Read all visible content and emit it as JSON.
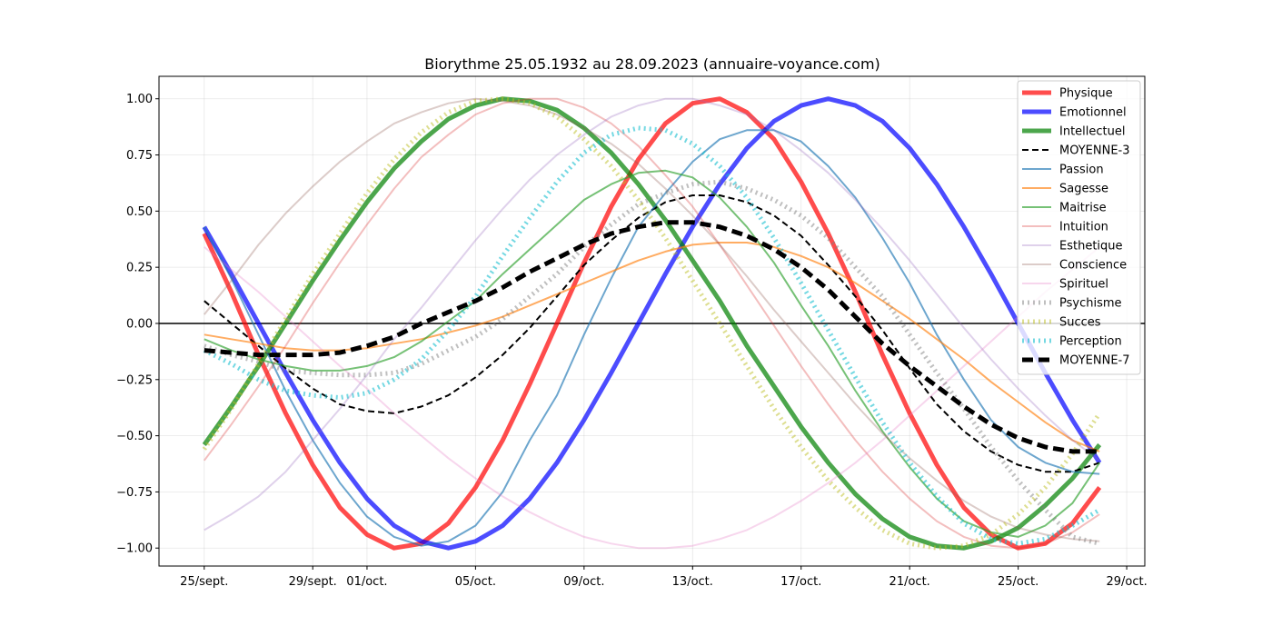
{
  "chart_data": {
    "type": "line",
    "title": "Biorythme 25.05.1932 au 28.09.2023 (annuaire-voyance.com)",
    "xlabel": "",
    "ylabel": "",
    "x_start": "2023-09-25",
    "xlim": [
      "2023-09-23T08:00",
      "2023-10-29T16:00"
    ],
    "ylim": [
      -1.08,
      1.1
    ],
    "grid": true,
    "legend_position": "top-right",
    "x_ticks": [
      {
        "date": "2023-09-25",
        "label": "25/sept."
      },
      {
        "date": "2023-09-29",
        "label": "29/sept."
      },
      {
        "date": "2023-10-01",
        "label": "01/oct."
      },
      {
        "date": "2023-10-05",
        "label": "05/oct."
      },
      {
        "date": "2023-10-09",
        "label": "09/oct."
      },
      {
        "date": "2023-10-13",
        "label": "13/oct."
      },
      {
        "date": "2023-10-17",
        "label": "17/oct."
      },
      {
        "date": "2023-10-21",
        "label": "21/oct."
      },
      {
        "date": "2023-10-25",
        "label": "25/oct."
      },
      {
        "date": "2023-10-29",
        "label": "29/oct."
      }
    ],
    "y_ticks": [
      {
        "value": 1.0,
        "label": "1.00"
      },
      {
        "value": 0.75,
        "label": "0.75"
      },
      {
        "value": 0.5,
        "label": "0.50"
      },
      {
        "value": 0.25,
        "label": "0.25"
      },
      {
        "value": 0.0,
        "label": "0.00"
      },
      {
        "value": -0.25,
        "label": "−0.25"
      },
      {
        "value": -0.5,
        "label": "−0.50"
      },
      {
        "value": -0.75,
        "label": "−0.75"
      },
      {
        "value": -1.0,
        "label": "−1.00"
      }
    ],
    "series": [
      {
        "name": "Physique",
        "color": "#ff0000",
        "alpha": 0.7,
        "width": 5,
        "dash": "",
        "values": [
          0.4,
          0.14,
          -0.14,
          -0.4,
          -0.63,
          -0.82,
          -0.94,
          -1.0,
          -0.98,
          -0.89,
          -0.73,
          -0.52,
          -0.27,
          0.0,
          0.27,
          0.52,
          0.73,
          0.89,
          0.98,
          1.0,
          0.94,
          0.82,
          0.63,
          0.4,
          0.14,
          -0.14,
          -0.4,
          -0.63,
          -0.82,
          -0.94,
          -1.0,
          -0.98,
          -0.89,
          -0.73
        ]
      },
      {
        "name": "Emotionnel",
        "color": "#0000ff",
        "alpha": 0.7,
        "width": 5,
        "dash": "",
        "values": [
          0.43,
          0.22,
          0.0,
          -0.22,
          -0.43,
          -0.62,
          -0.78,
          -0.9,
          -0.97,
          -1.0,
          -0.97,
          -0.9,
          -0.78,
          -0.62,
          -0.43,
          -0.22,
          0.0,
          0.22,
          0.43,
          0.62,
          0.78,
          0.9,
          0.97,
          1.0,
          0.97,
          0.9,
          0.78,
          0.62,
          0.43,
          0.22,
          0.0,
          -0.22,
          -0.43,
          -0.62
        ]
      },
      {
        "name": "Intellectuel",
        "color": "#008000",
        "alpha": 0.7,
        "width": 5,
        "dash": "",
        "values": [
          -0.54,
          -0.37,
          -0.19,
          0.0,
          0.19,
          0.37,
          0.54,
          0.69,
          0.81,
          0.91,
          0.97,
          1.0,
          0.99,
          0.95,
          0.87,
          0.76,
          0.62,
          0.46,
          0.28,
          0.1,
          -0.1,
          -0.28,
          -0.46,
          -0.62,
          -0.76,
          -0.87,
          -0.95,
          -0.99,
          -1.0,
          -0.97,
          -0.91,
          -0.81,
          -0.69,
          -0.54
        ]
      },
      {
        "name": "MOYENNE-3",
        "color": "#000000",
        "alpha": 1,
        "width": 2,
        "dash": "7 4",
        "values": [
          0.1,
          0.0,
          -0.1,
          -0.2,
          -0.29,
          -0.36,
          -0.39,
          -0.4,
          -0.37,
          -0.32,
          -0.24,
          -0.14,
          -0.02,
          0.12,
          0.26,
          0.37,
          0.47,
          0.54,
          0.57,
          0.57,
          0.54,
          0.48,
          0.39,
          0.26,
          0.12,
          -0.03,
          -0.2,
          -0.36,
          -0.48,
          -0.57,
          -0.63,
          -0.66,
          -0.66,
          -0.62
        ]
      },
      {
        "name": "Passion",
        "color": "#1f77b4",
        "alpha": 0.65,
        "width": 2,
        "dash": "",
        "values": [
          0.43,
          0.2,
          -0.05,
          -0.3,
          -0.52,
          -0.71,
          -0.86,
          -0.95,
          -0.99,
          -0.97,
          -0.9,
          -0.75,
          -0.52,
          -0.32,
          -0.05,
          0.2,
          0.43,
          0.58,
          0.72,
          0.82,
          0.86,
          0.86,
          0.81,
          0.7,
          0.56,
          0.38,
          0.18,
          -0.05,
          -0.25,
          -0.43,
          -0.55,
          -0.62,
          -0.66,
          -0.67
        ]
      },
      {
        "name": "Sagesse",
        "color": "#ff7f0e",
        "alpha": 0.65,
        "width": 2,
        "dash": "",
        "values": [
          -0.05,
          -0.07,
          -0.09,
          -0.11,
          -0.12,
          -0.12,
          -0.11,
          -0.09,
          -0.07,
          -0.04,
          -0.01,
          0.03,
          0.08,
          0.13,
          0.18,
          0.23,
          0.28,
          0.32,
          0.35,
          0.36,
          0.36,
          0.34,
          0.3,
          0.25,
          0.18,
          0.1,
          0.02,
          -0.07,
          -0.16,
          -0.26,
          -0.35,
          -0.44,
          -0.52,
          -0.57
        ]
      },
      {
        "name": "Maitrise",
        "color": "#2ca02c",
        "alpha": 0.65,
        "width": 2,
        "dash": "",
        "values": [
          -0.07,
          -0.12,
          -0.16,
          -0.19,
          -0.21,
          -0.21,
          -0.19,
          -0.15,
          -0.08,
          0.01,
          0.1,
          0.22,
          0.33,
          0.44,
          0.55,
          0.62,
          0.67,
          0.68,
          0.65,
          0.56,
          0.43,
          0.27,
          0.08,
          -0.1,
          -0.3,
          -0.48,
          -0.64,
          -0.78,
          -0.88,
          -0.93,
          -0.95,
          -0.9,
          -0.8,
          -0.62
        ]
      },
      {
        "name": "Intuition",
        "color": "#d62728",
        "alpha": 0.3,
        "width": 2,
        "dash": "",
        "values": [
          -0.61,
          -0.45,
          -0.28,
          -0.1,
          0.09,
          0.27,
          0.44,
          0.6,
          0.74,
          0.84,
          0.93,
          0.98,
          1.0,
          1.0,
          0.96,
          0.89,
          0.79,
          0.66,
          0.52,
          0.35,
          0.17,
          -0.01,
          -0.19,
          -0.36,
          -0.52,
          -0.66,
          -0.78,
          -0.88,
          -0.95,
          -0.99,
          -1.0,
          -0.98,
          -0.93,
          -0.85
        ]
      },
      {
        "name": "Esthetique",
        "color": "#9467bd",
        "alpha": 0.3,
        "width": 2,
        "dash": "",
        "values": [
          -0.92,
          -0.85,
          -0.77,
          -0.66,
          -0.52,
          -0.38,
          -0.23,
          -0.07,
          0.07,
          0.22,
          0.37,
          0.51,
          0.64,
          0.75,
          0.84,
          0.92,
          0.97,
          1.0,
          1.0,
          0.97,
          0.93,
          0.86,
          0.77,
          0.67,
          0.55,
          0.42,
          0.28,
          0.13,
          -0.02,
          -0.16,
          -0.29,
          -0.41,
          -0.52,
          -0.61
        ]
      },
      {
        "name": "Conscience",
        "color": "#8c564b",
        "alpha": 0.3,
        "width": 2,
        "dash": "",
        "values": [
          0.04,
          0.19,
          0.35,
          0.49,
          0.61,
          0.72,
          0.81,
          0.89,
          0.94,
          0.98,
          1.0,
          0.99,
          0.97,
          0.93,
          0.87,
          0.8,
          0.71,
          0.6,
          0.48,
          0.35,
          0.21,
          0.06,
          -0.08,
          -0.22,
          -0.36,
          -0.49,
          -0.6,
          -0.7,
          -0.79,
          -0.86,
          -0.91,
          -0.94,
          -0.96,
          -0.97
        ]
      },
      {
        "name": "Spirituel",
        "color": "#e377c2",
        "alpha": 0.3,
        "width": 2,
        "dash": "",
        "values": [
          0.34,
          0.24,
          0.14,
          0.03,
          -0.08,
          -0.19,
          -0.29,
          -0.4,
          -0.5,
          -0.6,
          -0.69,
          -0.77,
          -0.84,
          -0.9,
          -0.95,
          -0.98,
          -1.0,
          -1.0,
          -0.99,
          -0.96,
          -0.92,
          -0.86,
          -0.79,
          -0.71,
          -0.62,
          -0.52,
          -0.41,
          -0.3,
          -0.19,
          -0.08,
          0.03,
          0.14,
          0.24,
          0.34
        ]
      },
      {
        "name": "Psychisme",
        "color": "#7f7f7f",
        "alpha": 0.5,
        "width": 5,
        "dash": "2 4",
        "values": [
          -0.1,
          -0.14,
          -0.17,
          -0.21,
          -0.22,
          -0.23,
          -0.23,
          -0.22,
          -0.18,
          -0.12,
          -0.06,
          0.02,
          0.12,
          0.22,
          0.34,
          0.44,
          0.53,
          0.58,
          0.62,
          0.63,
          0.6,
          0.55,
          0.48,
          0.38,
          0.25,
          0.12,
          -0.05,
          -0.22,
          -0.38,
          -0.55,
          -0.7,
          -0.83,
          -0.95,
          -0.98
        ]
      },
      {
        "name": "Succes",
        "color": "#bcbd22",
        "alpha": 0.5,
        "width": 5,
        "dash": "2 4",
        "values": [
          -0.56,
          -0.38,
          -0.18,
          0.02,
          0.22,
          0.4,
          0.58,
          0.73,
          0.85,
          0.94,
          0.99,
          1.0,
          0.98,
          0.92,
          0.82,
          0.7,
          0.55,
          0.38,
          0.19,
          -0.0,
          -0.19,
          -0.38,
          -0.55,
          -0.7,
          -0.82,
          -0.92,
          -0.98,
          -1.0,
          -0.99,
          -0.94,
          -0.85,
          -0.73,
          -0.58,
          -0.4
        ]
      },
      {
        "name": "Perception",
        "color": "#17becf",
        "alpha": 0.6,
        "width": 5,
        "dash": "2 4",
        "values": [
          -0.12,
          -0.18,
          -0.25,
          -0.3,
          -0.32,
          -0.33,
          -0.31,
          -0.25,
          -0.16,
          -0.03,
          0.12,
          0.3,
          0.47,
          0.63,
          0.76,
          0.84,
          0.87,
          0.86,
          0.8,
          0.7,
          0.56,
          0.38,
          0.18,
          -0.03,
          -0.24,
          -0.44,
          -0.62,
          -0.77,
          -0.89,
          -0.96,
          -0.98,
          -0.96,
          -0.9,
          -0.83
        ]
      },
      {
        "name": "MOYENNE-7",
        "color": "#000000",
        "alpha": 1,
        "width": 5,
        "dash": "12 6",
        "values": [
          -0.12,
          -0.13,
          -0.14,
          -0.14,
          -0.14,
          -0.13,
          -0.1,
          -0.06,
          0.0,
          0.05,
          0.1,
          0.16,
          0.23,
          0.29,
          0.35,
          0.4,
          0.43,
          0.45,
          0.45,
          0.43,
          0.39,
          0.33,
          0.25,
          0.15,
          0.03,
          -0.09,
          -0.19,
          -0.28,
          -0.37,
          -0.45,
          -0.51,
          -0.55,
          -0.57,
          -0.57
        ]
      }
    ]
  }
}
